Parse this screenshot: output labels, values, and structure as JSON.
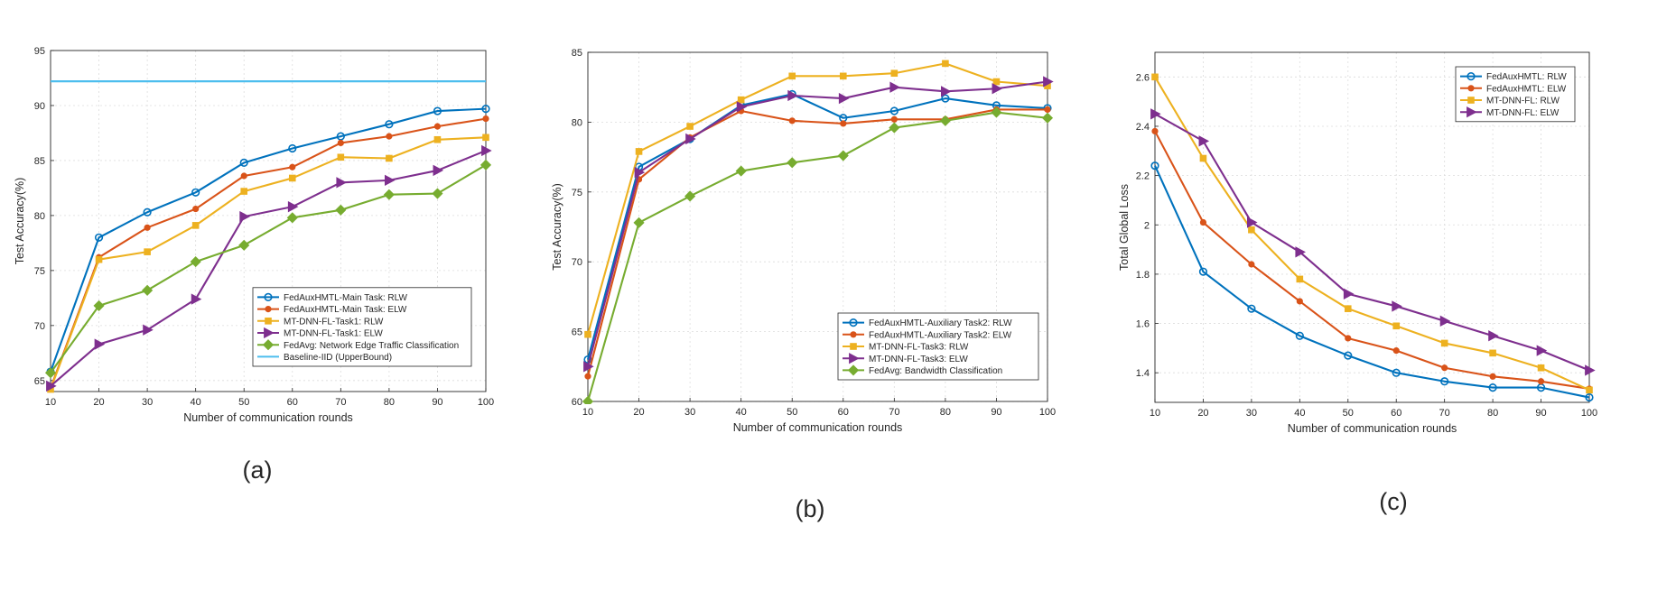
{
  "colors": {
    "blue": "#0072BD",
    "orange": "#D95319",
    "yellow": "#EDB120",
    "purple": "#7E2F8E",
    "green": "#77AC30",
    "lightblue": "#4DBEEE"
  },
  "chart_data": [
    {
      "type": "line",
      "panel_label": "(a)",
      "xlabel": "Number of communication rounds",
      "ylabel": "Test Accuracy(%)",
      "xlim": [
        10,
        100
      ],
      "ylim": [
        64,
        95
      ],
      "xticks": [
        10,
        20,
        30,
        40,
        50,
        60,
        70,
        80,
        90,
        100
      ],
      "yticks": [
        65,
        70,
        75,
        80,
        85,
        90,
        95
      ],
      "grid": true,
      "legend_location": "bottom-right",
      "x": [
        10,
        20,
        30,
        40,
        50,
        60,
        70,
        80,
        90,
        100
      ],
      "series": [
        {
          "name": "FedAuxHMTL-Main Task: RLW",
          "color": "blue",
          "marker": "circle",
          "values": [
            65.8,
            78.0,
            80.3,
            82.1,
            84.8,
            86.1,
            87.2,
            88.3,
            89.5,
            89.7
          ]
        },
        {
          "name": "FedAuxHMTL-Main Task: ELW",
          "color": "orange",
          "marker": "dot",
          "values": [
            64.3,
            76.2,
            78.9,
            80.6,
            83.6,
            84.4,
            86.6,
            87.2,
            88.1,
            88.8
          ]
        },
        {
          "name": "MT-DNN-FL-Task1: RLW",
          "color": "yellow",
          "marker": "square",
          "values": [
            64.2,
            76.0,
            76.7,
            79.1,
            82.2,
            83.4,
            85.3,
            85.2,
            86.9,
            87.1
          ]
        },
        {
          "name": "MT-DNN-FL-Task1: ELW",
          "color": "purple",
          "marker": "triangle",
          "values": [
            64.5,
            68.3,
            69.6,
            72.4,
            79.9,
            80.8,
            83.0,
            83.2,
            84.1,
            85.9
          ]
        },
        {
          "name": "FedAvg: Network Edge Traffic Classification",
          "color": "green",
          "marker": "diamond",
          "values": [
            65.7,
            71.8,
            73.2,
            75.8,
            77.3,
            79.8,
            80.5,
            81.9,
            82.0,
            84.6
          ]
        },
        {
          "name": "Baseline-IID (UpperBound)",
          "color": "lightblue",
          "marker": "none",
          "values": [
            92.2,
            92.2,
            92.2,
            92.2,
            92.2,
            92.2,
            92.2,
            92.2,
            92.2,
            92.2
          ]
        }
      ]
    },
    {
      "type": "line",
      "panel_label": "(b)",
      "xlabel": "Number of communication rounds",
      "ylabel": "Test Accuracy(%)",
      "xlim": [
        10,
        100
      ],
      "ylim": [
        60,
        85
      ],
      "xticks": [
        10,
        20,
        30,
        40,
        50,
        60,
        70,
        80,
        90,
        100
      ],
      "yticks": [
        60,
        65,
        70,
        75,
        80,
        85
      ],
      "grid": true,
      "legend_location": "bottom-right",
      "x": [
        10,
        20,
        30,
        40,
        50,
        60,
        70,
        80,
        90,
        100
      ],
      "series": [
        {
          "name": "FedAuxHMTL-Auxiliary Task2: RLW",
          "color": "blue",
          "marker": "circle",
          "values": [
            63.0,
            76.8,
            78.8,
            81.2,
            82.0,
            80.3,
            80.8,
            81.7,
            81.2,
            81.0
          ]
        },
        {
          "name": "FedAuxHMTL-Auxiliary Task2: ELW",
          "color": "orange",
          "marker": "dot",
          "values": [
            61.8,
            75.9,
            78.9,
            80.8,
            80.1,
            79.9,
            80.2,
            80.2,
            80.9,
            80.9
          ]
        },
        {
          "name": "MT-DNN-FL-Task3: RLW",
          "color": "yellow",
          "marker": "square",
          "values": [
            64.8,
            77.9,
            79.7,
            81.6,
            83.3,
            83.3,
            83.5,
            84.2,
            82.9,
            82.6
          ]
        },
        {
          "name": "MT-DNN-FL-Task3: ELW",
          "color": "purple",
          "marker": "triangle",
          "values": [
            62.5,
            76.4,
            78.8,
            81.1,
            81.9,
            81.7,
            82.5,
            82.2,
            82.4,
            82.9
          ]
        },
        {
          "name": "FedAvg: Bandwidth Classification",
          "color": "green",
          "marker": "diamond",
          "values": [
            60.0,
            72.8,
            74.7,
            76.5,
            77.1,
            77.6,
            79.6,
            80.1,
            80.7,
            80.3
          ]
        }
      ]
    },
    {
      "type": "line",
      "panel_label": "(c)",
      "xlabel": "Number of communication rounds",
      "ylabel": "Total Global Loss",
      "xlim": [
        10,
        100
      ],
      "ylim": [
        1.28,
        2.7
      ],
      "xticks": [
        10,
        20,
        30,
        40,
        50,
        60,
        70,
        80,
        90,
        100
      ],
      "yticks": [
        1.4,
        1.6,
        1.8,
        2.0,
        2.2,
        2.4,
        2.6
      ],
      "ytick_labels": [
        "1.4",
        "1.6",
        "1.8",
        "2",
        "2.2",
        "2.4",
        "2.6"
      ],
      "grid": true,
      "legend_location": "top-right",
      "x": [
        10,
        20,
        30,
        40,
        50,
        60,
        70,
        80,
        90,
        100
      ],
      "series": [
        {
          "name": "FedAuxHMTL: RLW",
          "color": "blue",
          "marker": "circle",
          "values": [
            2.24,
            1.81,
            1.66,
            1.55,
            1.47,
            1.4,
            1.365,
            1.34,
            1.34,
            1.3
          ]
        },
        {
          "name": "FedAuxHMTL: ELW",
          "color": "orange",
          "marker": "dot",
          "values": [
            2.38,
            2.01,
            1.84,
            1.69,
            1.54,
            1.49,
            1.42,
            1.385,
            1.365,
            1.335
          ]
        },
        {
          "name": "MT-DNN-FL: RLW",
          "color": "yellow",
          "marker": "square",
          "values": [
            2.6,
            2.27,
            1.98,
            1.78,
            1.66,
            1.59,
            1.52,
            1.48,
            1.42,
            1.33
          ]
        },
        {
          "name": "MT-DNN-FL: ELW",
          "color": "purple",
          "marker": "triangle",
          "values": [
            2.45,
            2.34,
            2.01,
            1.89,
            1.72,
            1.67,
            1.61,
            1.55,
            1.49,
            1.41
          ]
        }
      ]
    }
  ]
}
